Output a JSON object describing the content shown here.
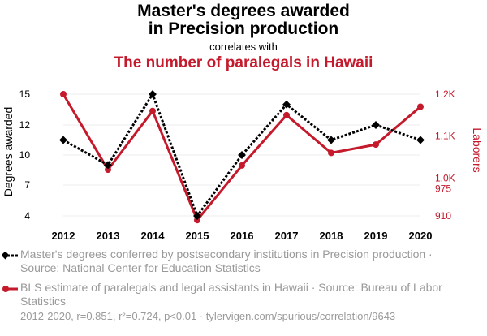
{
  "title_line1": "Master's degrees awarded",
  "title_line2": "in Precision production",
  "connector": "correlates with",
  "subtitle": "The number of paralegals in Hawaii",
  "colors": {
    "series1": "#000000",
    "series2": "#c41a2c",
    "muted": "#999999",
    "grid": "#eeeeee"
  },
  "legend": {
    "series1": "Master's degrees conferred by postsecondary institutions in Precision production · Source: National Center for Education Statistics",
    "series2": "BLS estimate of paralegals and legal assistants in Hawaii · Source: Bureau of Labor Statistics"
  },
  "footer": "2012-2020, r=0.851, r²=0.724, p<0.01 · tylervigen.com/spurious/correlation/9643",
  "chart_data": {
    "type": "line",
    "x": [
      "2012",
      "2013",
      "2014",
      "2015",
      "2016",
      "2017",
      "2018",
      "2019",
      "2020"
    ],
    "left_axis": {
      "label": "Degrees awarded",
      "ticks": [
        "4",
        "7",
        "10",
        "12",
        "15"
      ],
      "ylim": [
        4,
        15
      ]
    },
    "right_axis": {
      "label": "Laborers",
      "ticks": [
        "910",
        "975",
        "1.0K",
        "1.1K",
        "1.2K"
      ],
      "ylim": [
        910,
        1200
      ]
    },
    "series": [
      {
        "name": "Master's degrees conferred by postsecondary institutions in Precision production",
        "axis": "left",
        "style": "dotted",
        "marker": "diamond",
        "color": "#000000",
        "values": [
          11,
          9,
          15,
          4,
          10,
          14,
          11,
          12,
          11
        ]
      },
      {
        "name": "BLS estimate of paralegals and legal assistants in Hawaii",
        "axis": "right",
        "style": "solid",
        "marker": "circle",
        "color": "#c41a2c",
        "values": [
          1200,
          1020,
          1160,
          900,
          1030,
          1150,
          1060,
          1080,
          1170
        ]
      }
    ],
    "grid": true
  }
}
